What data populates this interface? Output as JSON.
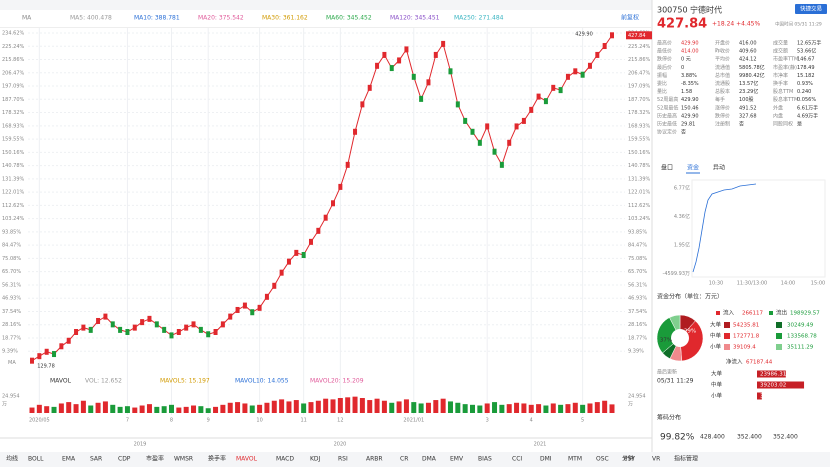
{
  "toolbar": {
    "ma_label": "MA",
    "ma_items": [
      "MA5: 400.478",
      "MA10: 388.781",
      "MA20: 375.542",
      "MA30: 361.162",
      "MA60: 345.452",
      "MA120: 345.451",
      "MA250: 271.484"
    ],
    "adjust": "前复权"
  },
  "chart_data": {
    "type": "line",
    "color": "#e0282d",
    "ylim": [
      0,
      234.62
    ],
    "yticks": [
      {
        "value": 234.62,
        "label": "234.62%"
      },
      {
        "value": 225.24,
        "label": "225.24%"
      },
      {
        "value": 215.86,
        "label": "215.86%"
      },
      {
        "value": 206.47,
        "label": "206.47%"
      },
      {
        "value": 197.09,
        "label": "197.09%"
      },
      {
        "value": 187.7,
        "label": "187.70%"
      },
      {
        "value": 178.32,
        "label": "178.32%"
      },
      {
        "value": 168.93,
        "label": "168.93%"
      },
      {
        "value": 159.55,
        "label": "159.55%"
      },
      {
        "value": 150.16,
        "label": "150.16%"
      },
      {
        "value": 140.78,
        "label": "140.78%"
      },
      {
        "value": 131.39,
        "label": "131.39%"
      },
      {
        "value": 122.01,
        "label": "122.01%"
      },
      {
        "value": 112.62,
        "label": "112.62%"
      },
      {
        "value": 103.24,
        "label": "103.24%"
      },
      {
        "value": 93.85,
        "label": "93.85%"
      },
      {
        "value": 84.47,
        "label": "84.47%"
      },
      {
        "value": 75.08,
        "label": "75.08%"
      },
      {
        "value": 65.7,
        "label": "65.70%"
      },
      {
        "value": 56.31,
        "label": "56.31%"
      },
      {
        "value": 46.93,
        "label": "46.93%"
      },
      {
        "value": 37.54,
        "label": "37.54%"
      },
      {
        "value": 28.16,
        "label": "28.16%"
      },
      {
        "value": 18.77,
        "label": "18.77%"
      },
      {
        "value": 9.39,
        "label": "9.39%"
      }
    ],
    "axis_bottom_label": "MA",
    "high_label": "429.90",
    "low_label": "129.78",
    "values": [
      2.7,
      5.9,
      9.0,
      7.4,
      12.9,
      16.8,
      23.0,
      26.1,
      24.5,
      30.8,
      33.9,
      28.4,
      24.5,
      23.0,
      26.1,
      30.0,
      32.3,
      28.4,
      24.5,
      20.6,
      23.0,
      26.1,
      28.4,
      24.5,
      21.4,
      23.0,
      28.4,
      33.9,
      38.6,
      41.7,
      37.0,
      40.1,
      47.9,
      55.7,
      65.0,
      72.8,
      79.0,
      77.5,
      86.8,
      94.6,
      103.9,
      114.1,
      125.7,
      141.3,
      164.7,
      184.1,
      195.8,
      211.4,
      219.1,
      209.8,
      215.2,
      223.0,
      203.6,
      188.0,
      199.7,
      219.1,
      226.9,
      207.5,
      184.1,
      172.4,
      164.7,
      156.9,
      168.5,
      150.6,
      141.3,
      156.9,
      168.5,
      172.4,
      180.2,
      189.6,
      186.4,
      195.8,
      194.2,
      203.6,
      207.5,
      205.1,
      211.4,
      219.1,
      225.4,
      233.0
    ],
    "xticks": [
      {
        "value": 1,
        "label": "2020/05"
      },
      {
        "value": 13,
        "label": "7"
      },
      {
        "value": 19,
        "label": "8"
      },
      {
        "value": 24,
        "label": "9"
      },
      {
        "value": 31,
        "label": "10"
      },
      {
        "value": 37,
        "label": "11"
      },
      {
        "value": 42,
        "label": "12"
      },
      {
        "value": 52,
        "label": "2021/01"
      },
      {
        "value": 62,
        "label": "3"
      },
      {
        "value": 68,
        "label": "4"
      },
      {
        "value": 75,
        "label": "5"
      }
    ],
    "years": [
      "2019",
      "2020",
      "2021"
    ],
    "volume": {
      "title": "MAVOL",
      "legend": [
        "VOL: 12.652",
        "MAVOL5: 15.197",
        "MAVOL10: 14.055",
        "MAVOL20: 15.209"
      ],
      "ylim": [
        0,
        24.954
      ],
      "top_label": "24.954",
      "unit": "万",
      "values": [
        8,
        12,
        10,
        9,
        14,
        16,
        13,
        18,
        11,
        15,
        17,
        12,
        9,
        10,
        8,
        11,
        13,
        9,
        10,
        12,
        8,
        9,
        11,
        10,
        7,
        9,
        12,
        15,
        16,
        14,
        11,
        12,
        15,
        18,
        20,
        17,
        19,
        14,
        16,
        18,
        21,
        20,
        22,
        23,
        24,
        22,
        19,
        21,
        18,
        15,
        17,
        20,
        16,
        14,
        15,
        19,
        21,
        17,
        15,
        13,
        12,
        11,
        14,
        16,
        12,
        13,
        15,
        14,
        12,
        13,
        11,
        14,
        12,
        13,
        15,
        12,
        14,
        16,
        18,
        12.652
      ]
    }
  },
  "quote": {
    "code": "300750",
    "name": "宁德时代",
    "price": "427.84",
    "change": "+18.24 +4.45%",
    "time": "中国时间 05/31 11:29",
    "trade_btn": "快捷交易",
    "stats": [
      [
        [
          "最高价",
          "429.90"
        ],
        [
          "最低价",
          "414.00"
        ],
        [
          "跌停价",
          "0 元"
        ],
        [
          "最后价",
          "0"
        ],
        [
          "振幅",
          "3.88%"
        ],
        [
          "委比",
          "-8.35%"
        ],
        [
          "量比",
          "1.58"
        ],
        [
          "52周最高",
          "429.90"
        ],
        [
          "52周最低",
          "150.46"
        ],
        [
          "历史最高",
          "429.90"
        ],
        [
          "历史最低",
          "29.81"
        ],
        [
          "协议定价",
          "否"
        ]
      ],
      [
        [
          "开盘价",
          "416.00"
        ],
        [
          "昨收价",
          "409.60"
        ],
        [
          "平均价",
          "424.12"
        ],
        [
          "流通值",
          "5805.78亿"
        ],
        [
          "总市值",
          "9980.42亿"
        ],
        [
          "流通股",
          "13.57亿"
        ],
        [
          "总股本",
          "23.29亿"
        ],
        [
          "每手",
          "100股"
        ],
        [
          "涨停价",
          "491.52"
        ],
        [
          "跌停价",
          "327.68"
        ],
        [
          "注册制",
          "否"
        ]
      ],
      [
        [
          "成交量",
          "12.65万手"
        ],
        [
          "成交额",
          "53.66亿"
        ],
        [
          "市盈率TTM",
          "146.67"
        ],
        [
          "市盈率(静)",
          "178.49"
        ],
        [
          "市净率",
          "15.182"
        ],
        [
          "换手率",
          "0.93%"
        ],
        [
          "股息TTM",
          "0.240"
        ],
        [
          "股息率TTM",
          "0.056%"
        ],
        [
          "外盘",
          "6.61万手"
        ],
        [
          "内盘",
          "4.69万手"
        ],
        [
          "同股同权",
          "是"
        ]
      ]
    ],
    "tabs": [
      "盘口",
      "资金",
      "异动"
    ]
  },
  "intraday": {
    "yticks": [
      "6.77亿",
      "4.36亿",
      "1.95亿",
      "-4599.93万"
    ],
    "xticks": [
      "10:30",
      "11:30/13:00",
      "14:00",
      "15:00"
    ]
  },
  "funds": {
    "title": "资金分布（单位：万元）",
    "in_label": "流入",
    "in_total": 266117,
    "out_label": "流出",
    "out_total": 198929.57,
    "rows": [
      "大单",
      "中单",
      "小单"
    ],
    "inflow": [
      54235.81,
      172771.8,
      39109.4
    ],
    "outflow": [
      30249.49,
      133568.78,
      35111.29
    ],
    "pie_labels": [
      "37%",
      "29%"
    ],
    "net_label": "净流入",
    "net": 67187.44,
    "updated_label": "最后更新",
    "updated": "05/31 11:29",
    "net_rows": [
      23986.31,
      39203.02,
      3998.11
    ]
  },
  "chips": {
    "title": "筹码分布",
    "pct": "99.82%",
    "v1": "428.400",
    "v2": "352.400",
    "v3": "352.400"
  },
  "bottom_bar": [
    "均线",
    "BOLL",
    "EMA",
    "SAR",
    "CDP",
    "市盈率",
    "WMSR",
    "换手率",
    "MAVOL",
    "MACD",
    "KDJ",
    "RSI",
    "ARBR",
    "CR",
    "DMA",
    "EMV",
    "BIAS",
    "CCI",
    "DMI",
    "MTM",
    "OSC",
    "PSY",
    "VR",
    "指标管理"
  ],
  "period": "分钟"
}
